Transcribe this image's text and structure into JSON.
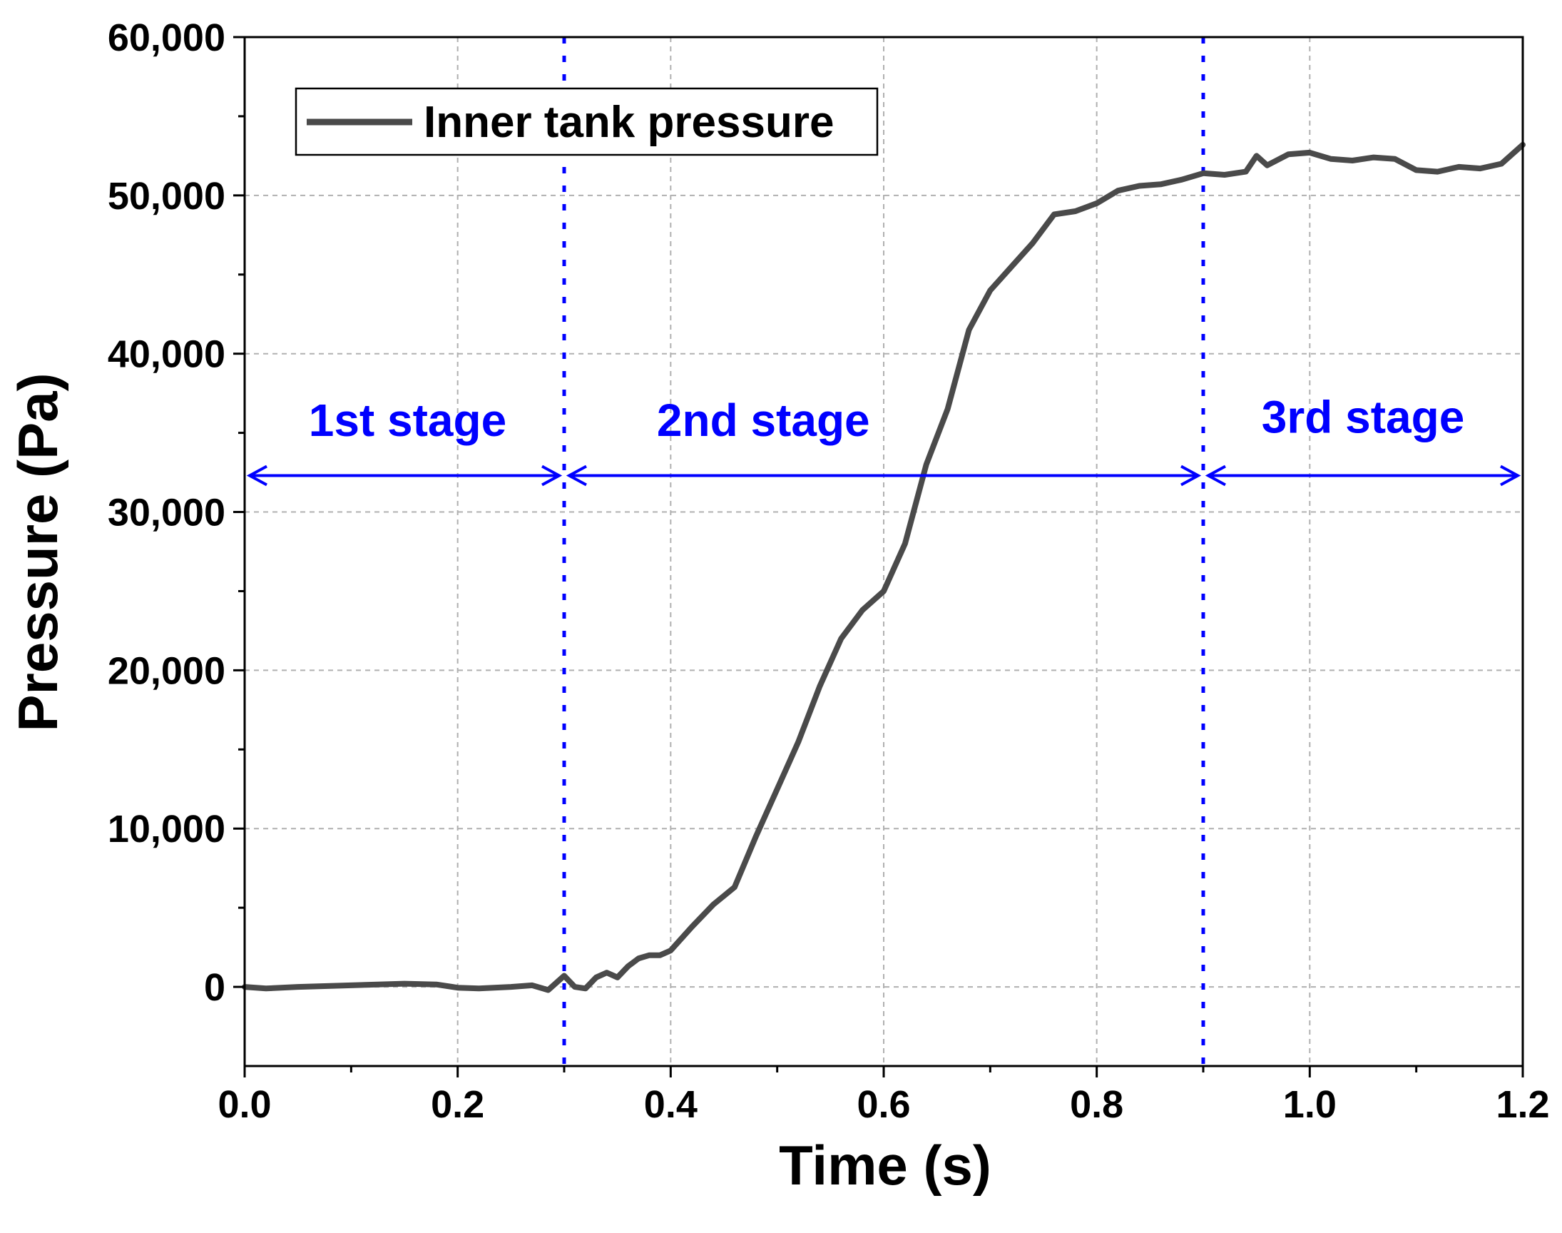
{
  "chart_data": {
    "type": "line",
    "title": "",
    "xlabel": "Time (s)",
    "ylabel": "Pressure (Pa)",
    "xlim": [
      0.0,
      1.2
    ],
    "ylim": [
      -5000,
      60000
    ],
    "x_ticks": [
      0.0,
      0.2,
      0.4,
      0.6,
      0.8,
      1.0,
      1.2
    ],
    "x_tick_labels": [
      "0.0",
      "0.2",
      "0.4",
      "0.6",
      "0.8",
      "1.0",
      "1.2"
    ],
    "y_ticks": [
      0,
      10000,
      20000,
      30000,
      40000,
      50000,
      60000
    ],
    "y_tick_labels": [
      "0",
      "10,000",
      "20,000",
      "30,000",
      "40,000",
      "50,000",
      "60,000"
    ],
    "grid": true,
    "legend": {
      "position": "top-left",
      "entries": [
        "Inner tank pressure"
      ]
    },
    "series": [
      {
        "name": "Inner tank pressure",
        "color": "#4a4a4a",
        "x": [
          0.0,
          0.02,
          0.05,
          0.1,
          0.15,
          0.18,
          0.2,
          0.22,
          0.25,
          0.27,
          0.285,
          0.3,
          0.31,
          0.32,
          0.33,
          0.34,
          0.35,
          0.36,
          0.37,
          0.38,
          0.39,
          0.4,
          0.42,
          0.44,
          0.46,
          0.48,
          0.5,
          0.52,
          0.54,
          0.56,
          0.58,
          0.6,
          0.62,
          0.64,
          0.66,
          0.68,
          0.7,
          0.72,
          0.74,
          0.76,
          0.78,
          0.8,
          0.82,
          0.84,
          0.86,
          0.88,
          0.9,
          0.92,
          0.94,
          0.95,
          0.96,
          0.98,
          1.0,
          1.02,
          1.04,
          1.06,
          1.08,
          1.1,
          1.12,
          1.14,
          1.16,
          1.18,
          1.2
        ],
        "y": [
          0,
          -100,
          0,
          100,
          200,
          150,
          -50,
          -100,
          0,
          100,
          -200,
          700,
          0,
          -100,
          600,
          900,
          600,
          1300,
          1800,
          2000,
          2000,
          2300,
          3800,
          5200,
          6300,
          9500,
          12500,
          15500,
          19000,
          22000,
          23800,
          25000,
          28000,
          33000,
          36500,
          41500,
          44000,
          45500,
          47000,
          48800,
          49000,
          49500,
          50300,
          50600,
          50700,
          51000,
          51400,
          51300,
          51500,
          52500,
          51900,
          52600,
          52700,
          52300,
          52200,
          52400,
          52300,
          51600,
          51500,
          51800,
          51700,
          52000,
          53200
        ]
      }
    ],
    "annotations": {
      "stage_boundaries": [
        0.3,
        0.9
      ],
      "arrow_y": 32300,
      "stages": [
        {
          "label": "1st stage",
          "x_start": 0.0,
          "x_end": 0.3,
          "label_x": 0.153,
          "label_y": 34800
        },
        {
          "label": "2nd stage",
          "x_start": 0.3,
          "x_end": 0.9,
          "label_x": 0.487,
          "label_y": 34800
        },
        {
          "label": "3rd stage",
          "x_start": 0.9,
          "x_end": 1.2,
          "label_x": 1.05,
          "label_y": 35000
        }
      ],
      "color": "#0000ff"
    }
  }
}
